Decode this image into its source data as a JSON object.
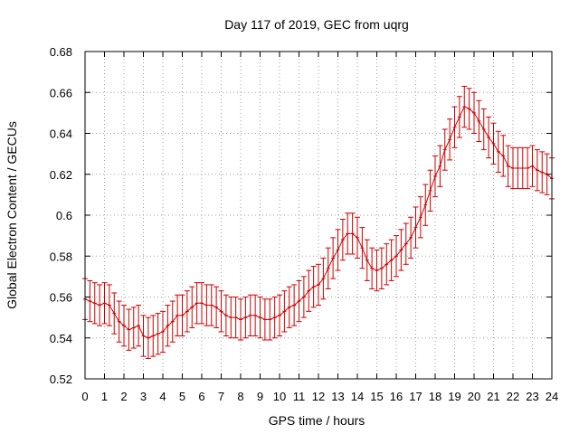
{
  "chart_data": {
    "type": "line",
    "title": "Day 117 of 2019, GEC from uqrg",
    "xlabel": "GPS time / hours",
    "ylabel": "Global Electron Content / GECUs",
    "xlim": [
      0,
      24
    ],
    "ylim": [
      0.52,
      0.68
    ],
    "xticks": [
      "0",
      "1",
      "2",
      "3",
      "4",
      "5",
      "6",
      "7",
      "8",
      "9",
      "10",
      "11",
      "12",
      "13",
      "14",
      "15",
      "16",
      "17",
      "18",
      "19",
      "20",
      "21",
      "22",
      "23",
      "24"
    ],
    "yticks": [
      "0.52",
      "0.54",
      "0.56",
      "0.58",
      "0.6",
      "0.62",
      "0.64",
      "0.66",
      "0.68"
    ],
    "grid": true,
    "error_bar_halfwidth": 0.01,
    "series_color": "#cc0000",
    "series": [
      {
        "x": [
          0.0,
          0.25,
          0.5,
          0.75,
          1.0,
          1.25,
          1.5,
          1.75,
          2.0,
          2.25,
          2.5,
          2.75,
          3.0,
          3.25,
          3.5,
          3.75,
          4.0,
          4.25,
          4.5,
          4.75,
          5.0,
          5.25,
          5.5,
          5.75,
          6.0,
          6.25,
          6.5,
          6.75,
          7.0,
          7.25,
          7.5,
          7.75,
          8.0,
          8.25,
          8.5,
          8.75,
          9.0,
          9.25,
          9.5,
          9.75,
          10.0,
          10.25,
          10.5,
          10.75,
          11.0,
          11.25,
          11.5,
          11.75,
          12.0,
          12.25,
          12.5,
          12.75,
          13.0,
          13.25,
          13.5,
          13.75,
          14.0,
          14.25,
          14.5,
          14.75,
          15.0,
          15.25,
          15.5,
          15.75,
          16.0,
          16.25,
          16.5,
          16.75,
          17.0,
          17.25,
          17.5,
          17.75,
          18.0,
          18.25,
          18.5,
          18.75,
          19.0,
          19.25,
          19.5,
          19.75,
          20.0,
          20.25,
          20.5,
          20.75,
          21.0,
          21.25,
          21.5,
          21.75,
          22.0,
          22.25,
          22.5,
          22.75,
          23.0,
          23.25,
          23.5,
          23.75,
          24.0
        ],
        "values": [
          0.559,
          0.558,
          0.557,
          0.556,
          0.557,
          0.556,
          0.552,
          0.548,
          0.546,
          0.544,
          0.545,
          0.546,
          0.541,
          0.54,
          0.541,
          0.542,
          0.543,
          0.546,
          0.548,
          0.551,
          0.551,
          0.553,
          0.555,
          0.557,
          0.557,
          0.556,
          0.556,
          0.555,
          0.553,
          0.551,
          0.55,
          0.55,
          0.549,
          0.55,
          0.551,
          0.551,
          0.55,
          0.549,
          0.549,
          0.55,
          0.551,
          0.553,
          0.555,
          0.556,
          0.558,
          0.56,
          0.563,
          0.565,
          0.566,
          0.569,
          0.574,
          0.579,
          0.583,
          0.588,
          0.591,
          0.591,
          0.589,
          0.584,
          0.578,
          0.574,
          0.573,
          0.574,
          0.576,
          0.578,
          0.58,
          0.583,
          0.586,
          0.589,
          0.594,
          0.599,
          0.605,
          0.612,
          0.619,
          0.624,
          0.632,
          0.637,
          0.643,
          0.648,
          0.653,
          0.652,
          0.65,
          0.646,
          0.642,
          0.638,
          0.635,
          0.631,
          0.629,
          0.624,
          0.623,
          0.623,
          0.623,
          0.623,
          0.624,
          0.622,
          0.621,
          0.62,
          0.618
        ]
      }
    ]
  }
}
